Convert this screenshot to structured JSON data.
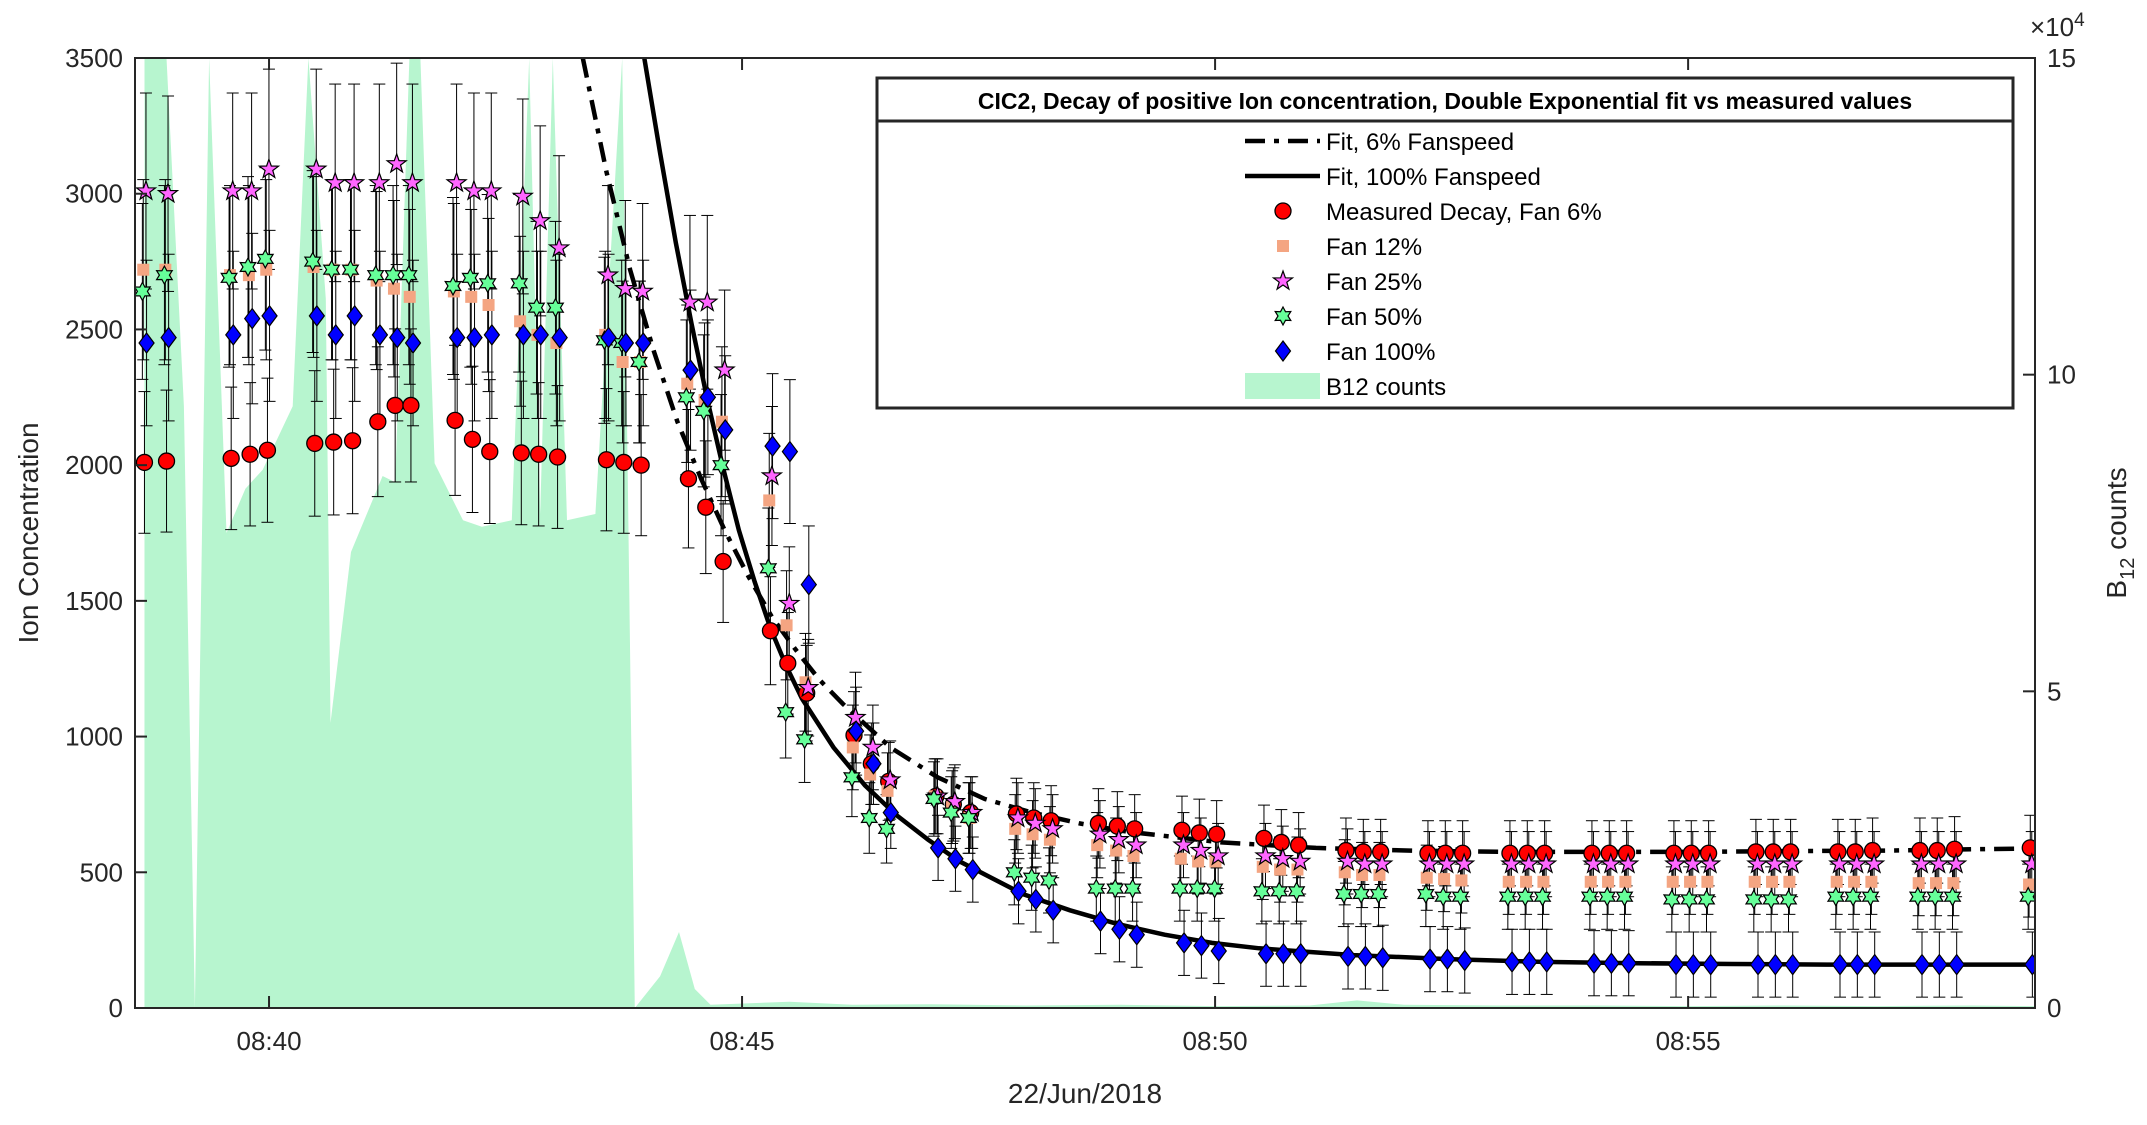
{
  "chart_data": {
    "type": "scatter",
    "title": "CIC2, Decay of positive Ion concentration, Double Exponential fit vs measured values",
    "xlabel": "22/Jun/2018",
    "ylabel": "Ion Concentration",
    "y2label_main": "B",
    "y2label_sub": "12",
    "y2label_tail": " counts",
    "y2_multiplier": "×10",
    "y2_multiplier_exp": "4",
    "xlim": [
      "08:38:35",
      "08:58:40"
    ],
    "ylim": [
      0,
      3500
    ],
    "y2lim": [
      0,
      150000
    ],
    "x_ticks": [
      "08:40",
      "08:45",
      "08:50",
      "08:55"
    ],
    "y_ticks": [
      "0",
      "500",
      "1000",
      "1500",
      "2000",
      "2500",
      "3000",
      "3500"
    ],
    "y2_ticks": [
      "0",
      "5",
      "10",
      "15"
    ],
    "legend_position": "top-right",
    "legend": [
      {
        "label": "Fit, 6% Fanspeed",
        "kind": "line-dashed",
        "color": "#000000"
      },
      {
        "label": "Fit, 100% Fanspeed",
        "kind": "line-solid",
        "color": "#000000"
      },
      {
        "label": "Measured Decay, Fan 6%",
        "kind": "circle",
        "color": "#ff0000"
      },
      {
        "label": "Fan 12%",
        "kind": "square",
        "color": "#f4a582"
      },
      {
        "label": "Fan 25%",
        "kind": "star",
        "color": "#ff66ff"
      },
      {
        "label": "Fan 50%",
        "kind": "hexagram",
        "color": "#66ff99"
      },
      {
        "label": "Fan 100%",
        "kind": "diamond",
        "color": "#0000ff"
      },
      {
        "label": "B12 counts",
        "kind": "area",
        "color": "#b7f5cf"
      }
    ],
    "grid": false,
    "series": [
      {
        "name": "Measured Decay, Fan 6%",
        "x": [
          "08:38:41",
          "08:38:55",
          "08:39:36",
          "08:39:48",
          "08:39:59",
          "08:40:29",
          "08:40:41",
          "08:40:53",
          "08:41:09",
          "08:41:20",
          "08:41:30",
          "08:41:58",
          "08:42:09",
          "08:42:20",
          "08:42:40",
          "08:42:51",
          "08:43:03",
          "08:43:34",
          "08:43:45",
          "08:43:56",
          "08:44:26",
          "08:44:37",
          "08:44:48",
          "08:45:18",
          "08:45:29",
          "08:45:41",
          "08:46:11",
          "08:46:22",
          "08:46:33",
          "08:47:03",
          "08:47:14",
          "08:47:25",
          "08:47:54",
          "08:48:05",
          "08:48:16",
          "08:48:46",
          "08:48:58",
          "08:49:09",
          "08:49:39",
          "08:49:50",
          "08:50:01",
          "08:50:31",
          "08:50:42",
          "08:50:53",
          "08:51:23",
          "08:51:34",
          "08:51:45",
          "08:52:15",
          "08:52:26",
          "08:52:37",
          "08:53:07",
          "08:53:18",
          "08:53:29",
          "08:53:59",
          "08:54:10",
          "08:54:21",
          "08:54:51",
          "08:55:02",
          "08:55:13",
          "08:55:43",
          "08:55:54",
          "08:56:05",
          "08:56:35",
          "08:56:46",
          "08:56:57",
          "08:57:27",
          "08:57:38",
          "08:57:49",
          "08:58:37"
        ],
        "values": [
          2010,
          2015,
          2025,
          2040,
          2055,
          2080,
          2085,
          2090,
          2160,
          2220,
          2220,
          2165,
          2095,
          2050,
          2045,
          2040,
          2030,
          2020,
          2010,
          2000,
          1950,
          1845,
          1645,
          1390,
          1270,
          1160,
          1005,
          900,
          835,
          780,
          750,
          720,
          715,
          700,
          690,
          680,
          670,
          660,
          655,
          645,
          640,
          625,
          610,
          600,
          580,
          575,
          575,
          570,
          570,
          570,
          570,
          570,
          570,
          570,
          570,
          570,
          570,
          570,
          570,
          575,
          575,
          575,
          575,
          575,
          580,
          580,
          580,
          585,
          590
        ]
      },
      {
        "name": "Fan 12%",
        "x": [
          "08:38:41",
          "08:38:55",
          "08:39:36",
          "08:39:48",
          "08:39:59",
          "08:40:29",
          "08:40:41",
          "08:40:53",
          "08:41:09",
          "08:41:20",
          "08:41:30",
          "08:41:58",
          "08:42:09",
          "08:42:20",
          "08:42:40",
          "08:42:51",
          "08:43:03",
          "08:43:34",
          "08:43:45",
          "08:43:56",
          "08:44:26",
          "08:44:37",
          "08:44:48",
          "08:45:18",
          "08:45:29",
          "08:45:41",
          "08:46:11",
          "08:46:22",
          "08:46:33",
          "08:47:03",
          "08:47:14",
          "08:47:25",
          "08:47:54",
          "08:48:05",
          "08:48:16",
          "08:48:46",
          "08:48:58",
          "08:49:09",
          "08:49:39",
          "08:49:50",
          "08:50:01",
          "08:50:31",
          "08:50:42",
          "08:50:53",
          "08:51:23",
          "08:51:34",
          "08:51:45",
          "08:52:15",
          "08:52:26",
          "08:52:37",
          "08:53:07",
          "08:53:18",
          "08:53:29",
          "08:53:59",
          "08:54:10",
          "08:54:21",
          "08:54:51",
          "08:55:02",
          "08:55:13",
          "08:55:43",
          "08:55:54",
          "08:56:05",
          "08:56:35",
          "08:56:46",
          "08:56:57",
          "08:57:27",
          "08:57:38",
          "08:57:49",
          "08:58:37"
        ],
        "values": [
          2720,
          2720,
          2700,
          2700,
          2720,
          2730,
          2720,
          2720,
          2680,
          2650,
          2620,
          2640,
          2620,
          2590,
          2530,
          2480,
          2450,
          2480,
          2380,
          2380,
          2300,
          2240,
          2160,
          1870,
          1410,
          1200,
          960,
          860,
          800,
          780,
          740,
          700,
          660,
          640,
          620,
          600,
          580,
          560,
          550,
          540,
          540,
          520,
          510,
          510,
          500,
          490,
          490,
          480,
          475,
          470,
          465,
          465,
          465,
          465,
          465,
          465,
          465,
          465,
          465,
          465,
          465,
          465,
          465,
          465,
          465,
          460,
          460,
          460,
          455
        ]
      },
      {
        "name": "Fan 25%",
        "x": [
          "08:38:41",
          "08:38:55",
          "08:39:36",
          "08:39:48",
          "08:39:59",
          "08:40:29",
          "08:40:41",
          "08:40:53",
          "08:41:09",
          "08:41:20",
          "08:41:30",
          "08:41:58",
          "08:42:09",
          "08:42:20",
          "08:42:40",
          "08:42:51",
          "08:43:03",
          "08:43:34",
          "08:43:45",
          "08:43:56",
          "08:44:26",
          "08:44:37",
          "08:44:48",
          "08:45:18",
          "08:45:29",
          "08:45:41",
          "08:46:11",
          "08:46:22",
          "08:46:33",
          "08:47:03",
          "08:47:14",
          "08:47:25",
          "08:47:54",
          "08:48:05",
          "08:48:16",
          "08:48:46",
          "08:48:58",
          "08:49:09",
          "08:49:39",
          "08:49:50",
          "08:50:01",
          "08:50:31",
          "08:50:42",
          "08:50:53",
          "08:51:23",
          "08:51:34",
          "08:51:45",
          "08:52:15",
          "08:52:26",
          "08:52:37",
          "08:53:07",
          "08:53:18",
          "08:53:29",
          "08:53:59",
          "08:54:10",
          "08:54:21",
          "08:54:51",
          "08:55:02",
          "08:55:13",
          "08:55:43",
          "08:55:54",
          "08:56:05",
          "08:56:35",
          "08:56:46",
          "08:56:57",
          "08:57:27",
          "08:57:38",
          "08:57:49",
          "08:58:37"
        ],
        "values": [
          3010,
          3000,
          3010,
          3010,
          3090,
          3090,
          3040,
          3040,
          3040,
          3110,
          3040,
          3040,
          3010,
          3010,
          2990,
          2900,
          2800,
          2700,
          2650,
          2640,
          2600,
          2600,
          2350,
          1960,
          1490,
          1180,
          1070,
          960,
          840,
          780,
          760,
          720,
          700,
          680,
          660,
          640,
          620,
          600,
          600,
          580,
          560,
          560,
          550,
          540,
          540,
          530,
          530,
          530,
          530,
          530,
          530,
          530,
          530,
          530,
          530,
          530,
          530,
          530,
          530,
          530,
          530,
          530,
          530,
          530,
          530,
          530,
          530,
          530,
          530
        ]
      },
      {
        "name": "Fan 50%",
        "x": [
          "08:38:41",
          "08:38:55",
          "08:39:36",
          "08:39:48",
          "08:39:59",
          "08:40:29",
          "08:40:41",
          "08:40:53",
          "08:41:09",
          "08:41:20",
          "08:41:30",
          "08:41:58",
          "08:42:09",
          "08:42:20",
          "08:42:40",
          "08:42:51",
          "08:43:03",
          "08:43:34",
          "08:43:45",
          "08:43:56",
          "08:44:26",
          "08:44:37",
          "08:44:48",
          "08:45:18",
          "08:45:29",
          "08:45:41",
          "08:46:11",
          "08:46:22",
          "08:46:33",
          "08:47:03",
          "08:47:14",
          "08:47:25",
          "08:47:54",
          "08:48:05",
          "08:48:16",
          "08:48:46",
          "08:48:58",
          "08:49:09",
          "08:49:39",
          "08:49:50",
          "08:50:01",
          "08:50:31",
          "08:50:42",
          "08:50:53",
          "08:51:23",
          "08:51:34",
          "08:51:45",
          "08:52:15",
          "08:52:26",
          "08:52:37",
          "08:53:07",
          "08:53:18",
          "08:53:29",
          "08:53:59",
          "08:54:10",
          "08:54:21",
          "08:54:51",
          "08:55:02",
          "08:55:13",
          "08:55:43",
          "08:55:54",
          "08:56:05",
          "08:56:35",
          "08:56:46",
          "08:56:57",
          "08:57:27",
          "08:57:38",
          "08:57:49",
          "08:58:37"
        ],
        "values": [
          2640,
          2700,
          2690,
          2730,
          2760,
          2750,
          2720,
          2720,
          2700,
          2700,
          2700,
          2660,
          2690,
          2670,
          2670,
          2580,
          2580,
          2460,
          2450,
          2380,
          2250,
          2200,
          2000,
          1620,
          1090,
          990,
          850,
          700,
          660,
          770,
          720,
          700,
          500,
          480,
          470,
          440,
          440,
          440,
          440,
          440,
          440,
          430,
          430,
          430,
          420,
          420,
          420,
          420,
          410,
          410,
          410,
          410,
          410,
          410,
          410,
          410,
          400,
          400,
          400,
          400,
          400,
          400,
          410,
          410,
          410,
          410,
          410,
          410,
          410
        ]
      },
      {
        "name": "Fan 100%",
        "x": [
          "08:38:41",
          "08:38:55",
          "08:39:36",
          "08:39:48",
          "08:39:59",
          "08:40:29",
          "08:40:41",
          "08:40:53",
          "08:41:09",
          "08:41:20",
          "08:41:30",
          "08:41:58",
          "08:42:09",
          "08:42:20",
          "08:42:40",
          "08:42:51",
          "08:43:03",
          "08:43:34",
          "08:43:45",
          "08:43:56",
          "08:44:26",
          "08:44:37",
          "08:44:48",
          "08:45:18",
          "08:45:29",
          "08:45:41",
          "08:46:11",
          "08:46:22",
          "08:46:33",
          "08:47:03",
          "08:47:14",
          "08:47:25",
          "08:47:54",
          "08:48:05",
          "08:48:16",
          "08:48:46",
          "08:48:58",
          "08:49:09",
          "08:49:39",
          "08:49:50",
          "08:50:01",
          "08:50:31",
          "08:50:42",
          "08:50:53",
          "08:51:23",
          "08:51:34",
          "08:51:45",
          "08:52:15",
          "08:52:26",
          "08:52:37",
          "08:53:07",
          "08:53:18",
          "08:53:29",
          "08:53:59",
          "08:54:10",
          "08:54:21",
          "08:54:51",
          "08:55:02",
          "08:55:13",
          "08:55:43",
          "08:55:54",
          "08:56:05",
          "08:56:35",
          "08:56:46",
          "08:56:57",
          "08:57:27",
          "08:57:38",
          "08:57:49",
          "08:58:37"
        ],
        "values": [
          2450,
          2470,
          2480,
          2540,
          2550,
          2550,
          2480,
          2550,
          2480,
          2470,
          2450,
          2470,
          2470,
          2480,
          2480,
          2480,
          2470,
          2470,
          2450,
          2450,
          2350,
          2250,
          2130,
          2070,
          2050,
          1560,
          1020,
          900,
          720,
          590,
          550,
          510,
          430,
          400,
          360,
          320,
          290,
          270,
          240,
          230,
          210,
          200,
          200,
          200,
          190,
          190,
          185,
          180,
          180,
          175,
          170,
          170,
          170,
          165,
          165,
          165,
          160,
          160,
          160,
          160,
          160,
          160,
          160,
          160,
          160,
          160,
          160,
          160,
          160
        ]
      }
    ],
    "fit_lines": [
      {
        "name": "Fit, 6% Fanspeed",
        "x": [
          "08:43:19",
          "08:43:34",
          "08:43:49",
          "08:44:04",
          "08:44:19",
          "08:44:34",
          "08:44:49",
          "08:45:04",
          "08:45:19",
          "08:45:34",
          "08:45:49",
          "08:46:04",
          "08:46:34",
          "08:47:04",
          "08:47:34",
          "08:48:04",
          "08:48:34",
          "08:49:04",
          "08:49:34",
          "08:50:04",
          "08:51:04",
          "08:52:04",
          "08:53:04",
          "08:54:04",
          "08:55:04",
          "08:56:04",
          "08:57:04",
          "08:58:04",
          "08:58:40"
        ],
        "values": [
          3500,
          3080,
          2720,
          2420,
          2160,
          1950,
          1760,
          1590,
          1440,
          1320,
          1210,
          1120,
          960,
          850,
          770,
          720,
          680,
          650,
          630,
          610,
          590,
          580,
          575,
          575,
          575,
          578,
          580,
          585,
          588
        ]
      },
      {
        "name": "Fit, 100% Fanspeed",
        "x": [
          "08:43:58",
          "08:44:08",
          "08:44:18",
          "08:44:28",
          "08:44:38",
          "08:44:48",
          "08:44:58",
          "08:45:08",
          "08:45:18",
          "08:45:28",
          "08:45:38",
          "08:45:58",
          "08:46:18",
          "08:46:38",
          "08:46:58",
          "08:47:18",
          "08:47:38",
          "08:47:58",
          "08:48:28",
          "08:48:58",
          "08:49:28",
          "08:49:58",
          "08:50:28",
          "08:51:28",
          "08:52:28",
          "08:53:28",
          "08:54:28",
          "08:55:28",
          "08:56:28",
          "08:57:28",
          "08:58:40"
        ],
        "values": [
          3500,
          3150,
          2820,
          2520,
          2240,
          1990,
          1760,
          1570,
          1400,
          1260,
          1140,
          960,
          820,
          710,
          620,
          540,
          480,
          420,
          360,
          310,
          270,
          240,
          220,
          195,
          180,
          170,
          165,
          162,
          160,
          160,
          160
        ]
      }
    ],
    "b12_counts": {
      "name": "B12 counts",
      "x": [
        "08:38:41",
        "08:38:55",
        "08:39:06",
        "08:39:13",
        "08:39:22",
        "08:39:33",
        "08:39:45",
        "08:39:56",
        "08:40:15",
        "08:40:25",
        "08:40:36",
        "08:40:39",
        "08:40:52",
        "08:41:12",
        "08:41:20",
        "08:41:29",
        "08:41:36",
        "08:41:45",
        "08:42:03",
        "08:42:15",
        "08:42:34",
        "08:42:45",
        "08:42:52",
        "08:43:00",
        "08:43:09",
        "08:43:27",
        "08:43:44",
        "08:43:52",
        "08:44:08",
        "08:44:20",
        "08:44:30",
        "08:44:40",
        "08:45:30",
        "08:46:10",
        "08:47:00",
        "08:48:00",
        "08:49:00",
        "08:50:00",
        "08:51:00",
        "08:51:30",
        "08:52:00",
        "08:53:00",
        "08:54:00",
        "08:55:00",
        "08:56:00",
        "08:57:00",
        "08:58:00",
        "08:58:40"
      ],
      "values": [
        150000,
        150000,
        95000,
        0,
        150000,
        75000,
        82000,
        85000,
        95000,
        150000,
        112000,
        45000,
        72000,
        84000,
        83000,
        150000,
        150000,
        86000,
        77000,
        76000,
        77000,
        150000,
        78000,
        150000,
        77000,
        78000,
        150000,
        0,
        5000,
        12000,
        3000,
        500,
        1000,
        500,
        600,
        400,
        500,
        300,
        400,
        1200,
        500,
        400,
        400,
        300,
        400,
        300,
        400,
        300
      ]
    }
  }
}
